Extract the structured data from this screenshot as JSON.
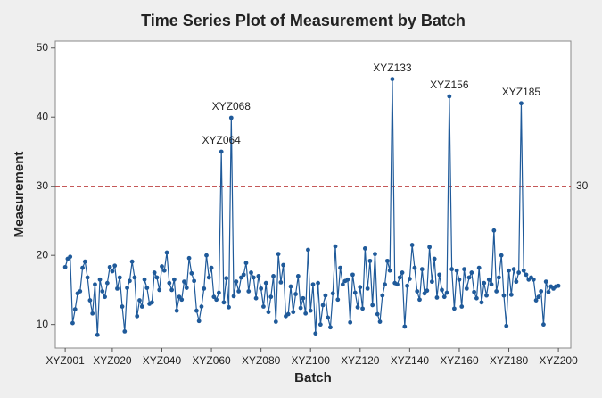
{
  "chart_data": {
    "type": "line",
    "title": "Time Series Plot of Measurement by Batch",
    "x_label": "Batch",
    "y_label": "Measurement",
    "color": "#1f5a9a",
    "x": [
      1,
      2,
      3,
      4,
      5,
      6,
      7,
      8,
      9,
      10,
      11,
      12,
      13,
      14,
      15,
      16,
      17,
      18,
      19,
      20,
      21,
      22,
      23,
      24,
      25,
      26,
      27,
      28,
      29,
      30,
      31,
      32,
      33,
      34,
      35,
      36,
      37,
      38,
      39,
      40,
      41,
      42,
      43,
      44,
      45,
      46,
      47,
      48,
      49,
      50,
      51,
      52,
      53,
      54,
      55,
      56,
      57,
      58,
      59,
      60,
      61,
      62,
      63,
      64,
      65,
      66,
      67,
      68,
      69,
      70,
      71,
      72,
      73,
      74,
      75,
      76,
      77,
      78,
      79,
      80,
      81,
      82,
      83,
      84,
      85,
      86,
      87,
      88,
      89,
      90,
      91,
      92,
      93,
      94,
      95,
      96,
      97,
      98,
      99,
      100,
      101,
      102,
      103,
      104,
      105,
      106,
      107,
      108,
      109,
      110,
      111,
      112,
      113,
      114,
      115,
      116,
      117,
      118,
      119,
      120,
      121,
      122,
      123,
      124,
      125,
      126,
      127,
      128,
      129,
      130,
      131,
      132,
      133,
      134,
      135,
      136,
      137,
      138,
      139,
      140,
      141,
      142,
      143,
      144,
      145,
      146,
      147,
      148,
      149,
      150,
      151,
      152,
      153,
      154,
      155,
      156,
      157,
      158,
      159,
      160,
      161,
      162,
      163,
      164,
      165,
      166,
      167,
      168,
      169,
      170,
      171,
      172,
      173,
      174,
      175,
      176,
      177,
      178,
      179,
      180,
      181,
      182,
      183,
      184,
      185,
      186,
      187,
      188,
      189,
      190,
      191,
      192,
      193,
      194,
      195,
      196,
      197,
      198,
      199,
      200
    ],
    "values": [
      18.3,
      19.5,
      19.8,
      10.2,
      12.2,
      14.5,
      14.8,
      18.2,
      19.1,
      16.8,
      13.5,
      11.6,
      15.8,
      8.5,
      16.5,
      14.8,
      14.0,
      16.0,
      18.3,
      17.7,
      18.5,
      15.2,
      16.8,
      12.6,
      9.0,
      15.3,
      16.3,
      19.1,
      16.8,
      11.2,
      13.5,
      12.6,
      16.5,
      15.3,
      13.0,
      13.2,
      17.5,
      16.8,
      15.0,
      18.4,
      17.8,
      20.4,
      16.0,
      15.0,
      16.5,
      12.0,
      14.0,
      13.6,
      16.2,
      15.3,
      19.6,
      17.4,
      16.3,
      12.0,
      10.5,
      12.6,
      15.2,
      20.0,
      16.8,
      18.2,
      14.0,
      13.6,
      14.6,
      35.0,
      13.2,
      16.7,
      12.5,
      39.9,
      14.1,
      16.2,
      14.8,
      16.8,
      17.2,
      18.9,
      14.8,
      17.5,
      16.8,
      13.8,
      17.0,
      15.2,
      12.6,
      16.0,
      11.8,
      14.0,
      17.0,
      10.4,
      20.2,
      16.1,
      18.6,
      11.2,
      11.5,
      15.5,
      11.8,
      14.4,
      17.0,
      12.4,
      13.8,
      11.6,
      20.8,
      12.0,
      15.8,
      8.7,
      16.0,
      10.0,
      12.8,
      14.2,
      11.0,
      9.6,
      14.5,
      21.3,
      13.6,
      18.2,
      15.8,
      16.3,
      16.5,
      10.3,
      17.2,
      14.6,
      12.5,
      15.4,
      12.3,
      21.0,
      15.2,
      19.2,
      12.8,
      20.2,
      11.5,
      10.4,
      14.2,
      15.8,
      19.2,
      17.8,
      45.5,
      16.0,
      15.8,
      16.8,
      17.5,
      9.7,
      15.6,
      16.6,
      21.5,
      18.2,
      14.8,
      13.6,
      18.0,
      14.5,
      14.9,
      21.2,
      16.2,
      19.5,
      13.9,
      17.2,
      15.0,
      14.0,
      14.6,
      43.0,
      18.0,
      12.3,
      17.8,
      16.5,
      12.6,
      18.0,
      15.2,
      16.8,
      17.5,
      14.7,
      13.8,
      18.2,
      13.2,
      16.0,
      14.2,
      16.5,
      15.8,
      23.6,
      14.8,
      16.8,
      20.0,
      14.2,
      9.8,
      17.8,
      14.3,
      18.0,
      16.2,
      17.5,
      42.0,
      17.8,
      17.2,
      16.5,
      16.8,
      16.5,
      13.5,
      14.0,
      14.8,
      10.0,
      16.2,
      14.7,
      15.5,
      15.2,
      15.5,
      15.6
    ],
    "xlim": [
      -3,
      205
    ],
    "xticks": [
      {
        "value": 1,
        "label": "XYZ001"
      },
      {
        "value": 20,
        "label": "XYZ020"
      },
      {
        "value": 40,
        "label": "XYZ040"
      },
      {
        "value": 60,
        "label": "XYZ060"
      },
      {
        "value": 80,
        "label": "XYZ080"
      },
      {
        "value": 100,
        "label": "XYZ100"
      },
      {
        "value": 120,
        "label": "XYZ120"
      },
      {
        "value": 140,
        "label": "XYZ140"
      },
      {
        "value": 160,
        "label": "XYZ160"
      },
      {
        "value": 180,
        "label": "XYZ180"
      },
      {
        "value": 200,
        "label": "XYZ200"
      }
    ],
    "ylim": [
      6.6,
      51
    ],
    "yticks": [
      10,
      20,
      30,
      40,
      50
    ],
    "reference_line": {
      "value": 30,
      "label": "30",
      "color": "#b22222"
    },
    "annotations": [
      {
        "text": "XYZ064",
        "x": 64
      },
      {
        "text": "XYZ068",
        "x": 68
      },
      {
        "text": "XYZ133",
        "x": 133
      },
      {
        "text": "XYZ156",
        "x": 156
      },
      {
        "text": "XYZ185",
        "x": 185
      }
    ]
  }
}
